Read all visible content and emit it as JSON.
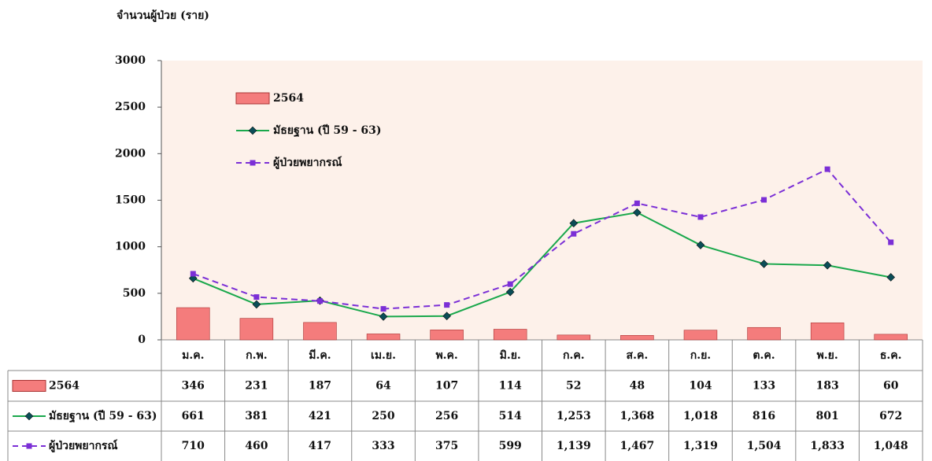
{
  "chart_data": {
    "type": "bar_line",
    "y_axis_label": "จำนวนผู้ป่วย (ราย)",
    "categories": [
      "ม.ค.",
      "ก.พ.",
      "มี.ค.",
      "เม.ย.",
      "พ.ค.",
      "มิ.ย.",
      "ก.ค.",
      "ส.ค.",
      "ก.ย.",
      "ต.ค.",
      "พ.ย.",
      "ธ.ค."
    ],
    "series": [
      {
        "name": "2564",
        "kind": "bar",
        "color": "#f47c7c",
        "values": [
          346,
          231,
          187,
          64,
          107,
          114,
          52,
          48,
          104,
          133,
          183,
          60
        ]
      },
      {
        "name": "มัธยฐาน (ปี 59 - 63)",
        "kind": "line",
        "color": "#1aa84c",
        "marker_color": "#0b4d57",
        "values": [
          661,
          381,
          421,
          250,
          256,
          514,
          1253,
          1368,
          1018,
          816,
          801,
          672
        ],
        "value_labels": [
          "661",
          "381",
          "421",
          "250",
          "256",
          "514",
          "1,253",
          "1,368",
          "1,018",
          "816",
          "801",
          "672"
        ]
      },
      {
        "name": "ผู้ป่วยพยากรณ์",
        "kind": "dashed-line",
        "color": "#7b2fd6",
        "values": [
          710,
          460,
          417,
          333,
          375,
          599,
          1139,
          1467,
          1319,
          1504,
          1833,
          1048
        ],
        "value_labels": [
          "710",
          "460",
          "417",
          "333",
          "375",
          "599",
          "1,139",
          "1,467",
          "1,319",
          "1,504",
          "1,833",
          "1,048"
        ]
      }
    ],
    "ylim": [
      0,
      3000
    ],
    "yticks": [
      0,
      500,
      1000,
      1500,
      2000,
      2500,
      3000
    ],
    "grid": false
  }
}
